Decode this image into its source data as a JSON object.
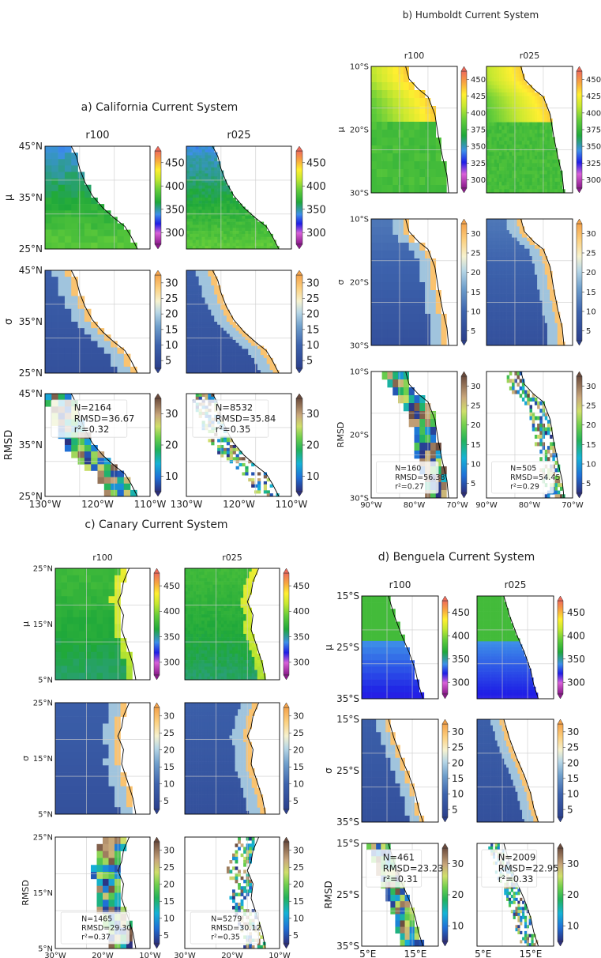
{
  "chart_data": {
    "type": "heatmap",
    "units": [
      {
        "title": "a) California Current System",
        "columns": [
          "r100",
          "r025"
        ],
        "rows": [
          "μ",
          "σ",
          "RMSD"
        ],
        "lat_ticks": [
          "45°N",
          "35°N",
          "25°N"
        ],
        "lon_ticks": [
          "130°W",
          "120°W",
          "110°W"
        ],
        "colorbars": [
          [
            "450",
            "400",
            "350",
            "300"
          ],
          [
            "30",
            "25",
            "20",
            "15",
            "10",
            "5"
          ],
          [
            "30",
            "20",
            "10"
          ]
        ],
        "stats": [
          {
            "n": "N=2164",
            "rmsd": "RMSD=36.67",
            "r2": "r²=0.32"
          },
          {
            "n": "N=8532",
            "rmsd": "RMSD=35.84",
            "r2": "r²=0.35"
          }
        ]
      },
      {
        "title": "b) Humboldt Current System",
        "columns": [
          "r100",
          "r025"
        ],
        "rows": [
          "μ",
          "σ",
          "RMSD"
        ],
        "lat_ticks": [
          "10°S",
          "20°S",
          "30°S"
        ],
        "lon_ticks": [
          "90°W",
          "80°W",
          "70°W"
        ],
        "colorbars": [
          [
            "450",
            "425",
            "400",
            "375",
            "350",
            "325",
            "300"
          ],
          [
            "30",
            "25",
            "20",
            "15",
            "10",
            "5"
          ],
          [
            "30",
            "25",
            "20",
            "15",
            "10",
            "5"
          ]
        ],
        "stats": [
          {
            "n": "N=160",
            "rmsd": "RMSD=56.38",
            "r2": "r²=0.27"
          },
          {
            "n": "N=505",
            "rmsd": "RMSD=54.45",
            "r2": "r²=0.29"
          }
        ]
      },
      {
        "title": "c) Canary Current System",
        "columns": [
          "r100",
          "r025"
        ],
        "rows": [
          "μ",
          "σ",
          "RMSD"
        ],
        "lat_ticks": [
          "25°N",
          "15°N",
          "5°N"
        ],
        "lon_ticks": [
          "30°W",
          "20°W",
          "10°W"
        ],
        "colorbars": [
          [
            "450",
            "400",
            "350",
            "300"
          ],
          [
            "30",
            "25",
            "20",
            "15",
            "10",
            "5"
          ],
          [
            "30",
            "25",
            "20",
            "15",
            "10",
            "5"
          ]
        ],
        "stats": [
          {
            "n": "N=1465",
            "rmsd": "RMSD=29.30",
            "r2": "r²=0.37"
          },
          {
            "n": "N=5279",
            "rmsd": "RMSD=30.12",
            "r2": "r²=0.35"
          }
        ]
      },
      {
        "title": "d) Benguela Current System",
        "columns": [
          "r100",
          "r025"
        ],
        "rows": [
          "μ",
          "σ",
          "RMSD"
        ],
        "lat_ticks": [
          "15°S",
          "25°S",
          "35°S"
        ],
        "lon_ticks": [
          "5°E",
          "15°E"
        ],
        "colorbars": [
          [
            "450",
            "400",
            "350",
            "300"
          ],
          [
            "30",
            "25",
            "20",
            "15",
            "10",
            "5"
          ],
          [
            "30",
            "20",
            "10"
          ]
        ],
        "stats": [
          {
            "n": "N=461",
            "rmsd": "RMSD=23.23",
            "r2": "r²=0.31"
          },
          {
            "n": "N=2009",
            "rmsd": "RMSD=22.95",
            "r2": "r²=0.33"
          }
        ]
      }
    ]
  }
}
